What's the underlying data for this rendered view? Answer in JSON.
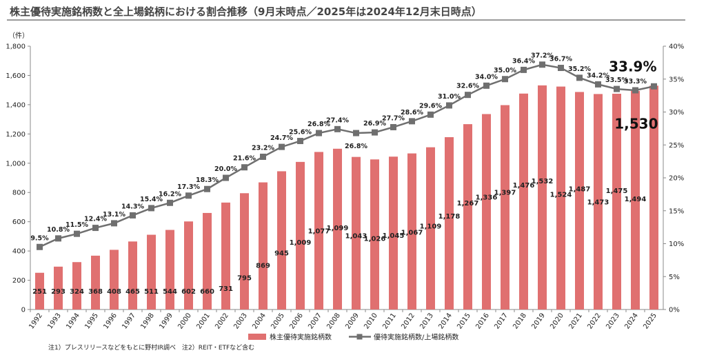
{
  "title": "株主優待実施銘柄数と全上場銘柄における割合推移（9月末時点／2025年は2024年12月末日時点）",
  "note": "注1）プレスリリースなどをもとに野村IR調べ　注2）REIT・ETFなど含む",
  "colors": {
    "bar": "#e07070",
    "line": "#6f6f6f",
    "axis": "#888888",
    "title_rule": "#9a9a9a"
  },
  "chart_data": {
    "type": "bar+line",
    "categories": [
      "1992",
      "1993",
      "1994",
      "1995",
      "1996",
      "1997",
      "1998",
      "1999",
      "2000",
      "2001",
      "2002",
      "2003",
      "2004",
      "2005",
      "2006",
      "2007",
      "2008",
      "2009",
      "2010",
      "2011",
      "2012",
      "2013",
      "2014",
      "2015",
      "2016",
      "2017",
      "2018",
      "2019",
      "2020",
      "2021",
      "2022",
      "2023",
      "2024",
      "2025"
    ],
    "series": [
      {
        "name": "株主優待実施銘柄数",
        "type": "bar",
        "axis": "left",
        "values": [
          251,
          293,
          324,
          368,
          408,
          465,
          511,
          544,
          602,
          660,
          731,
          795,
          869,
          945,
          1009,
          1077,
          1099,
          1043,
          1026,
          1045,
          1067,
          1109,
          1178,
          1267,
          1336,
          1397,
          1476,
          1532,
          1524,
          1487,
          1473,
          1475,
          1494,
          1530
        ],
        "labels": [
          "251",
          "293",
          "324",
          "368",
          "408",
          "465",
          "511",
          "544",
          "602",
          "660",
          "731",
          "795",
          "869",
          "945",
          "1,009",
          "1,077",
          "1,099",
          "1,043",
          "1,026",
          "1,045",
          "1,067",
          "1,109",
          "1,178",
          "1,267",
          "1,336",
          "1,397",
          "1,476",
          "1,532",
          "1,524",
          "1,487",
          "1,473",
          "1,475",
          "1,494",
          "1,530"
        ]
      },
      {
        "name": "優待実施銘柄数/上場銘柄数",
        "type": "line",
        "axis": "right",
        "values": [
          9.5,
          10.8,
          11.5,
          12.4,
          13.1,
          14.3,
          15.4,
          16.2,
          17.3,
          18.3,
          20.0,
          21.6,
          23.2,
          24.7,
          25.6,
          26.8,
          27.4,
          26.8,
          26.9,
          27.7,
          28.6,
          29.6,
          31.0,
          32.6,
          34.0,
          35.0,
          36.4,
          37.2,
          36.7,
          35.2,
          34.2,
          33.5,
          33.3,
          33.9
        ],
        "labels": [
          "9.5%",
          "10.8%",
          "11.5%",
          "12.4%",
          "13.1%",
          "14.3%",
          "15.4%",
          "16.2%",
          "17.3%",
          "18.3%",
          "20.0%",
          "21.6%",
          "23.2%",
          "24.7%",
          "25.6%",
          "26.8%",
          "27.4%",
          "26.8%",
          "26.9%",
          "27.7%",
          "28.6%",
          "29.6%",
          "31.0%",
          "32.6%",
          "34.0%",
          "35.0%",
          "36.4%",
          "37.2%",
          "36.7%",
          "35.2%",
          "34.2%",
          "33.5%",
          "33.3%",
          "33.9%"
        ]
      }
    ],
    "left_axis": {
      "unit": "（件）",
      "ylim": [
        0,
        1800
      ],
      "ticks": [
        "0",
        "200",
        "400",
        "600",
        "800",
        "1,000",
        "1,200",
        "1,400",
        "1,600",
        "1,800"
      ]
    },
    "right_axis": {
      "ylim": [
        0,
        40
      ],
      "ticks": [
        "0%",
        "5%",
        "10%",
        "15%",
        "20%",
        "25%",
        "30%",
        "35%",
        "40%"
      ]
    },
    "highlights": {
      "bar": "1,530",
      "line": "33.9%"
    },
    "grid": false,
    "legend_position": "bottom"
  }
}
